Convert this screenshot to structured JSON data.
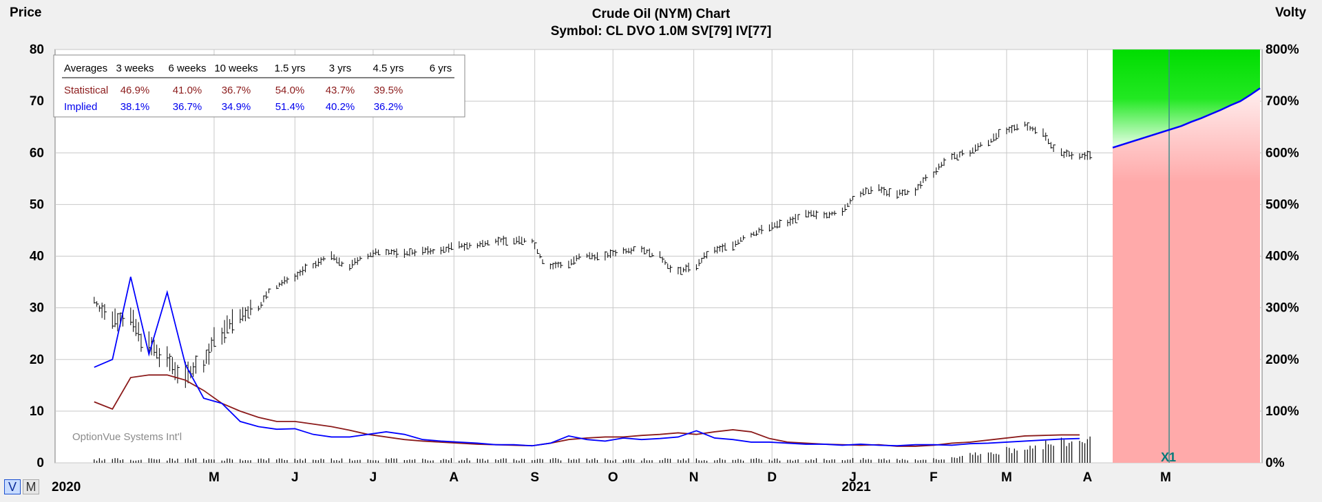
{
  "header": {
    "title": "Crude Oil (NYM) Chart",
    "subtitle": "Symbol: CL  DVO 1.0M  SV[79]  IV[77]",
    "left_axis_label": "Price",
    "right_axis_label": "Volty"
  },
  "controls": {
    "v_button": "V",
    "m_button": "M"
  },
  "year_labels": {
    "first": "2020",
    "second": "2021"
  },
  "averages_table": {
    "columns": [
      "Averages",
      "3 weeks",
      "6 weeks",
      "10 weeks",
      "1.5 yrs",
      "3 yrs",
      "4.5 yrs",
      "6 yrs"
    ],
    "rows": [
      {
        "label": "Statistical",
        "values": [
          "46.9%",
          "41.0%",
          "36.7%",
          "54.0%",
          "43.7%",
          "39.5%",
          ""
        ]
      },
      {
        "label": "Implied",
        "values": [
          "38.1%",
          "36.7%",
          "34.9%",
          "51.4%",
          "40.2%",
          "36.2%",
          ""
        ]
      }
    ]
  },
  "watermark": "OptionVue Systems Int'l",
  "projection_marker": "X1",
  "colors": {
    "price_bars": "#000000",
    "statistical_volatility": "#8b1a1a",
    "implied_volatility": "#0000ff",
    "projection_upper": "#00dd00",
    "projection_lower": "#ffaaaa",
    "grid": "#c8c8c8"
  },
  "chart_data": {
    "type": "line",
    "title": "Crude Oil (NYM) Chart",
    "x_tick_labels": [
      "M",
      "J",
      "J",
      "A",
      "S",
      "O",
      "N",
      "D",
      "J",
      "F",
      "M",
      "A",
      "M"
    ],
    "y_left": {
      "label": "Price",
      "range": [
        0,
        80
      ],
      "ticks": [
        "0",
        "10",
        "20",
        "30",
        "40",
        "50",
        "60",
        "70",
        "80"
      ]
    },
    "y_right": {
      "label": "Volty",
      "range": [
        0,
        800
      ],
      "ticks": [
        "0%",
        "100%",
        "200%",
        "300%",
        "400%",
        "500%",
        "600%",
        "700%",
        "800%"
      ]
    },
    "grid": true,
    "price_series": {
      "name": "Price",
      "dates": [
        "2020-03-16",
        "2020-03-23",
        "2020-03-30",
        "2020-04-06",
        "2020-04-13",
        "2020-04-20",
        "2020-04-27",
        "2020-05-04",
        "2020-05-11",
        "2020-05-18",
        "2020-05-25",
        "2020-06-01",
        "2020-06-08",
        "2020-06-15",
        "2020-06-22",
        "2020-06-29",
        "2020-07-06",
        "2020-07-13",
        "2020-07-20",
        "2020-07-27",
        "2020-08-03",
        "2020-08-10",
        "2020-08-17",
        "2020-08-24",
        "2020-08-31",
        "2020-09-07",
        "2020-09-14",
        "2020-09-21",
        "2020-09-28",
        "2020-10-05",
        "2020-10-12",
        "2020-10-19",
        "2020-10-26",
        "2020-11-02",
        "2020-11-09",
        "2020-11-16",
        "2020-11-23",
        "2020-11-30",
        "2020-12-07",
        "2020-12-14",
        "2020-12-21",
        "2020-12-28",
        "2021-01-04",
        "2021-01-11",
        "2021-01-18",
        "2021-01-25",
        "2021-02-01",
        "2021-02-08",
        "2021-02-15",
        "2021-02-22",
        "2021-03-01",
        "2021-03-08",
        "2021-03-15",
        "2021-03-22",
        "2021-03-29"
      ],
      "close": [
        31.5,
        28,
        28,
        23,
        20,
        17,
        19,
        25,
        28,
        30,
        34,
        36,
        38,
        40,
        38,
        40,
        41,
        40.5,
        41,
        41,
        42,
        42,
        43,
        43,
        43,
        38,
        38.5,
        40,
        40,
        41,
        41.5,
        40,
        37,
        38,
        41,
        42,
        44,
        45.5,
        46.5,
        48,
        48,
        48.5,
        52,
        53,
        52,
        52.5,
        56,
        59,
        60,
        62,
        64,
        65.5,
        64,
        60,
        59.5
      ]
    },
    "statistical_volatility": {
      "name": "Statistical",
      "values_pct": [
        118,
        104,
        165,
        170,
        170,
        160,
        140,
        115,
        100,
        88,
        80,
        80,
        75,
        70,
        63,
        55,
        50,
        45,
        42,
        40,
        38,
        36,
        35,
        34,
        33,
        38,
        45,
        48,
        50,
        50,
        53,
        55,
        58,
        55,
        60,
        64,
        60,
        47,
        40,
        38,
        36,
        35,
        34,
        35,
        32,
        32,
        34,
        38,
        40,
        44,
        48,
        52,
        53,
        54,
        54
      ]
    },
    "implied_volatility": {
      "name": "Implied",
      "values_pct": [
        185,
        200,
        360,
        210,
        330,
        190,
        125,
        115,
        80,
        70,
        65,
        66,
        55,
        50,
        50,
        55,
        60,
        55,
        45,
        42,
        40,
        38,
        35,
        35,
        33,
        38,
        52,
        45,
        42,
        48,
        45,
        47,
        50,
        62,
        48,
        45,
        40,
        40,
        38,
        36,
        36,
        34,
        36,
        34,
        33,
        35,
        35,
        34,
        37,
        38,
        40,
        42,
        44,
        46,
        47
      ],
      "projection_pct": [
        610,
        616,
        622,
        628,
        634,
        640,
        646,
        652,
        660,
        667,
        675,
        683,
        692,
        700,
        712,
        725
      ]
    }
  }
}
